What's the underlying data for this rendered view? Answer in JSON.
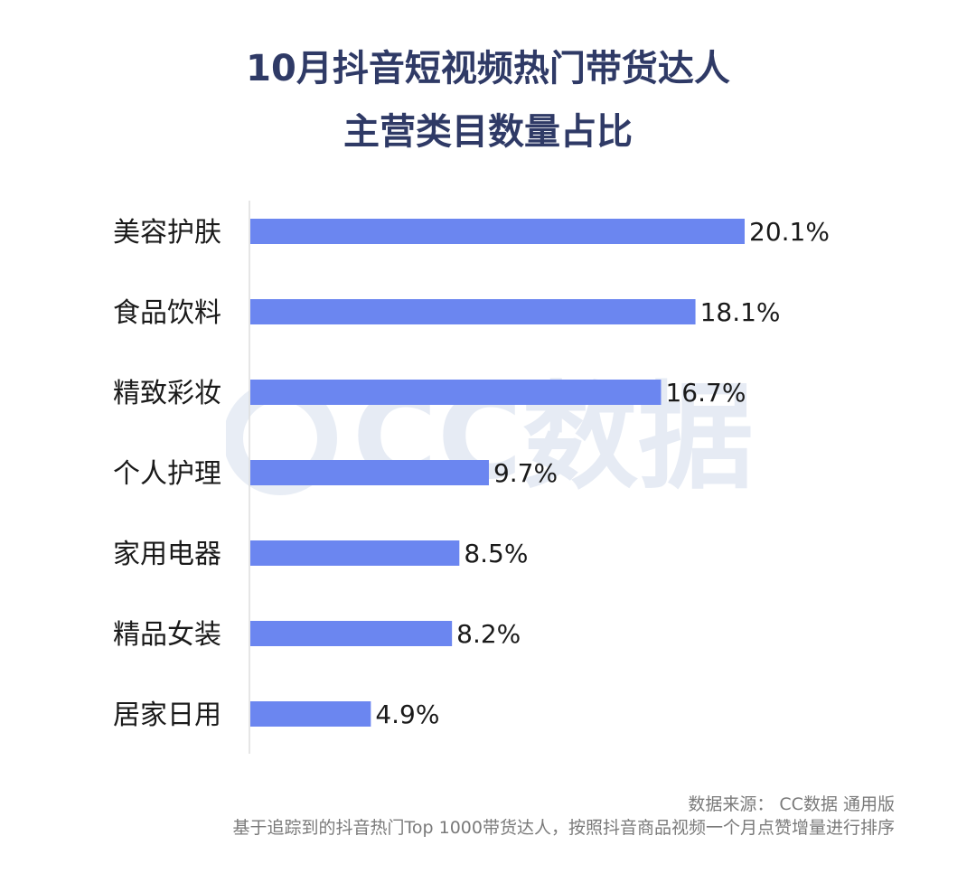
{
  "chart_data": {
    "type": "bar",
    "orientation": "horizontal",
    "title_lines": [
      "10月抖音短视频热门带货达人",
      "主营类目数量占比"
    ],
    "categories": [
      "美容护肤",
      "食品饮料",
      "精致彩妆",
      "个人护理",
      "家用电器",
      "精品女装",
      "居家日用"
    ],
    "values": [
      20.1,
      18.1,
      16.7,
      9.7,
      8.5,
      8.2,
      4.9
    ],
    "value_labels": [
      "20.1%",
      "18.1%",
      "16.7%",
      "9.7%",
      "8.5%",
      "8.2%",
      "4.9%"
    ],
    "xlim": [
      0,
      20.1
    ],
    "grid": false,
    "legend": "none",
    "bar_color": "#6b86f0"
  },
  "footer": {
    "source": "数据来源： CC数据 通用版",
    "note": "基于追踪到的抖音热门Top 1000带货达人，按照抖音商品视频一个月点赞增量进行排序"
  },
  "watermark": {
    "text": "CC数据",
    "color": "#e3e8f3"
  },
  "colors": {
    "title": "#2f3a66",
    "axis": "#d9d9d9"
  }
}
